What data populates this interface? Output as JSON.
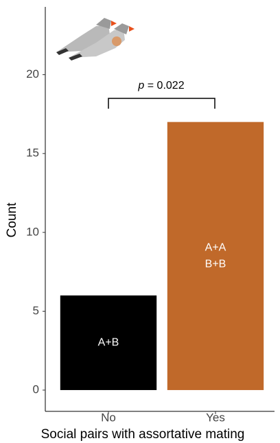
{
  "chart_data": {
    "type": "bar",
    "categories": [
      "No",
      "Yes"
    ],
    "values": [
      6,
      17
    ],
    "colors": [
      "#000000",
      "#c0692a"
    ],
    "bar_labels": [
      [
        "A+B"
      ],
      [
        "A+A",
        "B+B"
      ]
    ],
    "ylim": [
      -1.35,
      24.3
    ],
    "yticks": [
      0,
      5,
      10,
      15,
      20
    ],
    "ylabel": "Count",
    "xlabel": "Social pairs with assortative mating",
    "annotation": {
      "symbol": "p",
      "text": " = 0.022"
    },
    "grid": false
  }
}
